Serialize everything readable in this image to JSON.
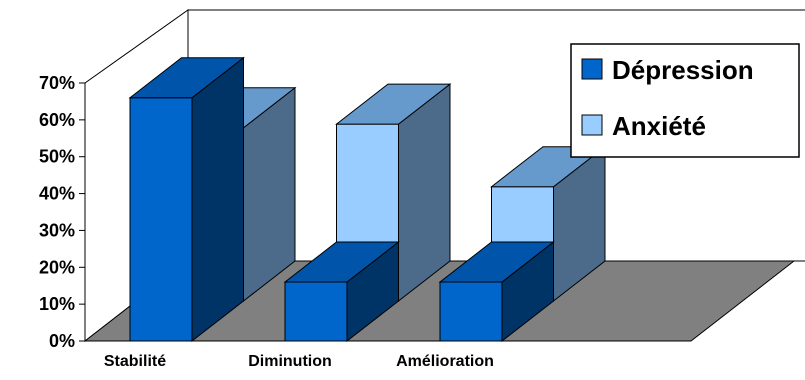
{
  "chart_data": {
    "type": "bar",
    "style": "3d-clustered-depth",
    "categories": [
      "Stabilité",
      "Diminution",
      "Amélioration"
    ],
    "series": [
      {
        "name": "Dépression",
        "values": [
          66,
          16,
          16
        ]
      },
      {
        "name": "Anxiété",
        "values": [
          47,
          48,
          31
        ]
      }
    ],
    "ylim": [
      0,
      70
    ],
    "yticks": [
      0,
      10,
      20,
      30,
      40,
      50,
      60,
      70
    ],
    "ytick_labels": [
      "0%",
      "10%",
      "20%",
      "30%",
      "40%",
      "50%",
      "60%",
      "70%"
    ],
    "legend_position": "top-right",
    "grid": false,
    "colors": {
      "series_front": [
        "#0066cc",
        "#99ccff"
      ],
      "series_top": [
        "#0055aa",
        "#6699cc"
      ],
      "series_side": [
        "#003366",
        "#4c6b8a"
      ],
      "floor": "#808080",
      "walls": "#ffffff"
    }
  }
}
